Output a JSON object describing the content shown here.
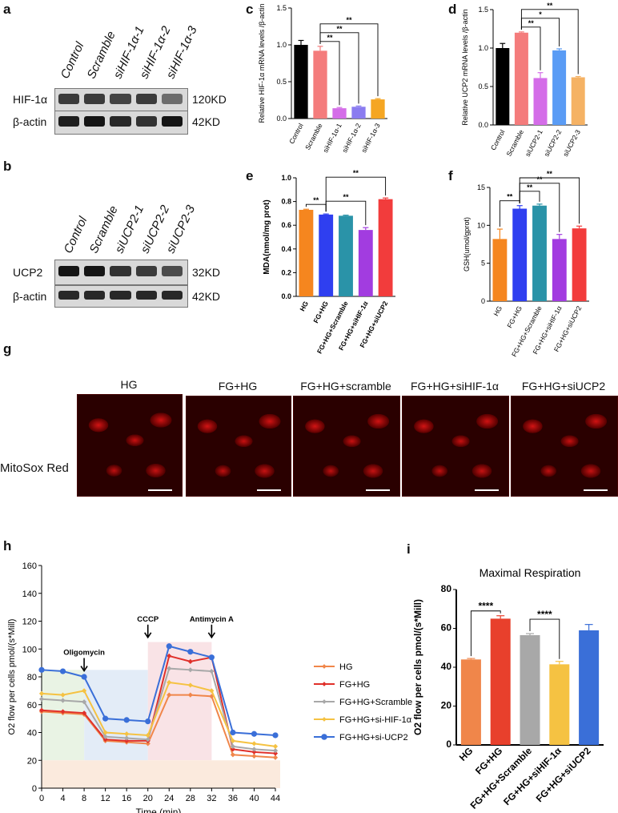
{
  "panels": {
    "a": "a",
    "b": "b",
    "c": "c",
    "d": "d",
    "e": "e",
    "f": "f",
    "g": "g",
    "h": "h",
    "i": "i"
  },
  "blot_a": {
    "lanes": [
      "Control",
      "Scramble",
      "siHIF-1α-1",
      "siHIF-1α-2",
      "siHIF-1α-3"
    ],
    "rows": [
      {
        "label": "HIF-1α",
        "kd": "120KD",
        "intensity": [
          0.75,
          0.75,
          0.7,
          0.75,
          0.45
        ]
      },
      {
        "label": "β-actin",
        "kd": "42KD",
        "intensity": [
          0.9,
          0.95,
          0.85,
          0.8,
          0.95
        ]
      }
    ]
  },
  "blot_b": {
    "lanes": [
      "Control",
      "Scramble",
      "siUCP2-1",
      "siUCP2-2",
      "siUCP2-3"
    ],
    "rows": [
      {
        "label": "UCP2",
        "kd": "32KD",
        "intensity": [
          0.95,
          0.95,
          0.8,
          0.75,
          0.65
        ]
      },
      {
        "label": "β-actin",
        "kd": "42KD",
        "intensity": [
          0.85,
          0.85,
          0.85,
          0.85,
          0.85
        ]
      }
    ]
  },
  "chart_data": [
    {
      "id": "c",
      "type": "bar",
      "ylabel": "Relative HIF-1α mRNA levels /β-actin",
      "categories": [
        "Control",
        "Scramble",
        "siHIF-1α-1",
        "siHIF-1α-2",
        "siHIF-1α-3"
      ],
      "values": [
        1.0,
        0.92,
        0.14,
        0.16,
        0.26
      ],
      "errors": [
        0.06,
        0.06,
        0.01,
        0.01,
        0.01
      ],
      "colors": [
        "#000000",
        "#f47c7c",
        "#d46de8",
        "#8a7cf0",
        "#f5a623"
      ],
      "ylim": [
        0,
        1.5
      ],
      "yticks": [
        0.0,
        0.5,
        1.0,
        1.5
      ],
      "annotations": [
        {
          "from": 1,
          "to": 2,
          "text": "**"
        },
        {
          "from": 1,
          "to": 3,
          "text": "**"
        },
        {
          "from": 1,
          "to": 4,
          "text": "**"
        }
      ]
    },
    {
      "id": "d",
      "type": "bar",
      "ylabel": "Relative UCP2 mRNA levels /β-actin",
      "categories": [
        "Control",
        "Scramble",
        "siUCP2-1",
        "siUCP2-2",
        "siUCP2-3"
      ],
      "values": [
        1.0,
        1.2,
        0.61,
        0.97,
        0.62
      ],
      "errors": [
        0.06,
        0.01,
        0.07,
        0.02,
        0.01
      ],
      "colors": [
        "#000000",
        "#f47c7c",
        "#d46de8",
        "#5a9cf5",
        "#f5b264"
      ],
      "ylim": [
        0,
        1.5
      ],
      "yticks": [
        0.0,
        0.5,
        1.0,
        1.5
      ],
      "annotations": [
        {
          "from": 1,
          "to": 2,
          "text": "**"
        },
        {
          "from": 1,
          "to": 3,
          "text": "*"
        },
        {
          "from": 1,
          "to": 4,
          "text": "**"
        }
      ]
    },
    {
      "id": "e",
      "type": "bar",
      "ylabel": "MDA(nmol/mg prot)",
      "categories": [
        "HG",
        "FG+HG",
        "FG+HG+Scramble",
        "FG+HG+siHIF-1α",
        "FG+HG+siUCP2"
      ],
      "values": [
        0.73,
        0.69,
        0.68,
        0.56,
        0.82
      ],
      "errors": [
        0.005,
        0.005,
        0.005,
        0.02,
        0.01
      ],
      "colors": [
        "#f5861f",
        "#2f3ff0",
        "#2a93a8",
        "#a23ce0",
        "#f23c3c"
      ],
      "ylim": [
        0,
        1.0
      ],
      "yticks": [
        0.0,
        0.2,
        0.4,
        0.6,
        0.8,
        1.0
      ],
      "annotations": [
        {
          "from": 0,
          "to": 1,
          "text": "**"
        },
        {
          "from": 1,
          "to": 3,
          "text": "**"
        },
        {
          "from": 1,
          "to": 4,
          "text": "**"
        }
      ]
    },
    {
      "id": "f",
      "type": "bar",
      "ylabel": "GSH(umol/gprot)",
      "categories": [
        "HG",
        "FG+HG",
        "FG+HG+Scramble",
        "FG+HG+siHIF-1α",
        "FG+HG+siUCP2"
      ],
      "values": [
        8.2,
        12.2,
        12.6,
        8.2,
        9.6
      ],
      "errors": [
        1.3,
        0.4,
        0.2,
        0.6,
        0.3
      ],
      "colors": [
        "#f5861f",
        "#2f3ff0",
        "#2a93a8",
        "#a23ce0",
        "#f23c3c"
      ],
      "ylim": [
        0,
        15
      ],
      "yticks": [
        0,
        5,
        10,
        15
      ],
      "annotations": [
        {
          "from": 0,
          "to": 1,
          "text": "**"
        },
        {
          "from": 1,
          "to": 2,
          "text": "**"
        },
        {
          "from": 1,
          "to": 3,
          "text": "**"
        },
        {
          "from": 1,
          "to": 4,
          "text": "**"
        }
      ]
    },
    {
      "id": "h",
      "type": "line",
      "xlabel": "Time (min)",
      "ylabel": "O2 flow per cells pmol/(s*Mill)",
      "x": [
        0,
        4,
        8,
        12,
        16,
        20,
        24,
        28,
        32,
        36,
        40,
        44
      ],
      "xlim": [
        0,
        44
      ],
      "ylim": [
        0,
        160
      ],
      "xticks": [
        0,
        4,
        8,
        12,
        16,
        20,
        24,
        28,
        32,
        36,
        40,
        44
      ],
      "yticks": [
        0,
        20,
        40,
        60,
        80,
        100,
        120,
        140,
        160
      ],
      "series": [
        {
          "name": "HG",
          "color": "#f0864a",
          "values": [
            55,
            54,
            53,
            34,
            33,
            32,
            67,
            67,
            66,
            24,
            23,
            22
          ]
        },
        {
          "name": "FG+HG",
          "color": "#e0302a",
          "values": [
            56,
            55,
            54,
            35,
            34,
            34,
            95,
            91,
            94,
            28,
            26,
            25
          ]
        },
        {
          "name": "FG+HG+Scramble",
          "color": "#a8a8a8",
          "values": [
            64,
            63,
            62,
            37,
            36,
            35,
            86,
            85,
            84,
            30,
            28,
            27
          ]
        },
        {
          "name": "FG+HG+si-HIF-1α",
          "color": "#f5c242",
          "values": [
            68,
            67,
            70,
            40,
            39,
            38,
            76,
            74,
            70,
            34,
            32,
            30
          ]
        },
        {
          "name": "FG+HG+si-UCP2",
          "color": "#3a6fd8",
          "values": [
            85,
            84,
            80,
            50,
            49,
            48,
            102,
            98,
            94,
            40,
            39,
            38
          ]
        }
      ],
      "annotations": [
        {
          "text": "Oligomycin",
          "x": 8
        },
        {
          "text": "CCCP",
          "x": 20
        },
        {
          "text": "Antimycin A",
          "x": 32
        }
      ]
    },
    {
      "id": "i",
      "type": "bar",
      "title": "Maximal Respiration",
      "ylabel": "O2 flow per cells pmol/(s*Mill)",
      "categories": [
        "HG",
        "FG+HG",
        "FG+HG+Scramble",
        "FG+HG+siHIF-1α",
        "FG+HG+siUCP2"
      ],
      "values": [
        44,
        65,
        56.5,
        41.5,
        59
      ],
      "errors": [
        0.5,
        1.5,
        0.8,
        1.5,
        3
      ],
      "colors": [
        "#f0864a",
        "#e8402c",
        "#a8a8a8",
        "#f5c242",
        "#3a6fd8"
      ],
      "ylim": [
        0,
        80
      ],
      "yticks": [
        0,
        20,
        40,
        60,
        80
      ],
      "annotations": [
        {
          "from": 0,
          "to": 1,
          "text": "****"
        },
        {
          "from": 2,
          "to": 3,
          "text": "****"
        }
      ]
    }
  ],
  "microscopy": {
    "row_label": "MitoSox Red",
    "titles": [
      "HG",
      "FG+HG",
      "FG+HG+scramble",
      "FG+HG+siHIF-1α",
      "FG+HG+siUCP2"
    ]
  }
}
